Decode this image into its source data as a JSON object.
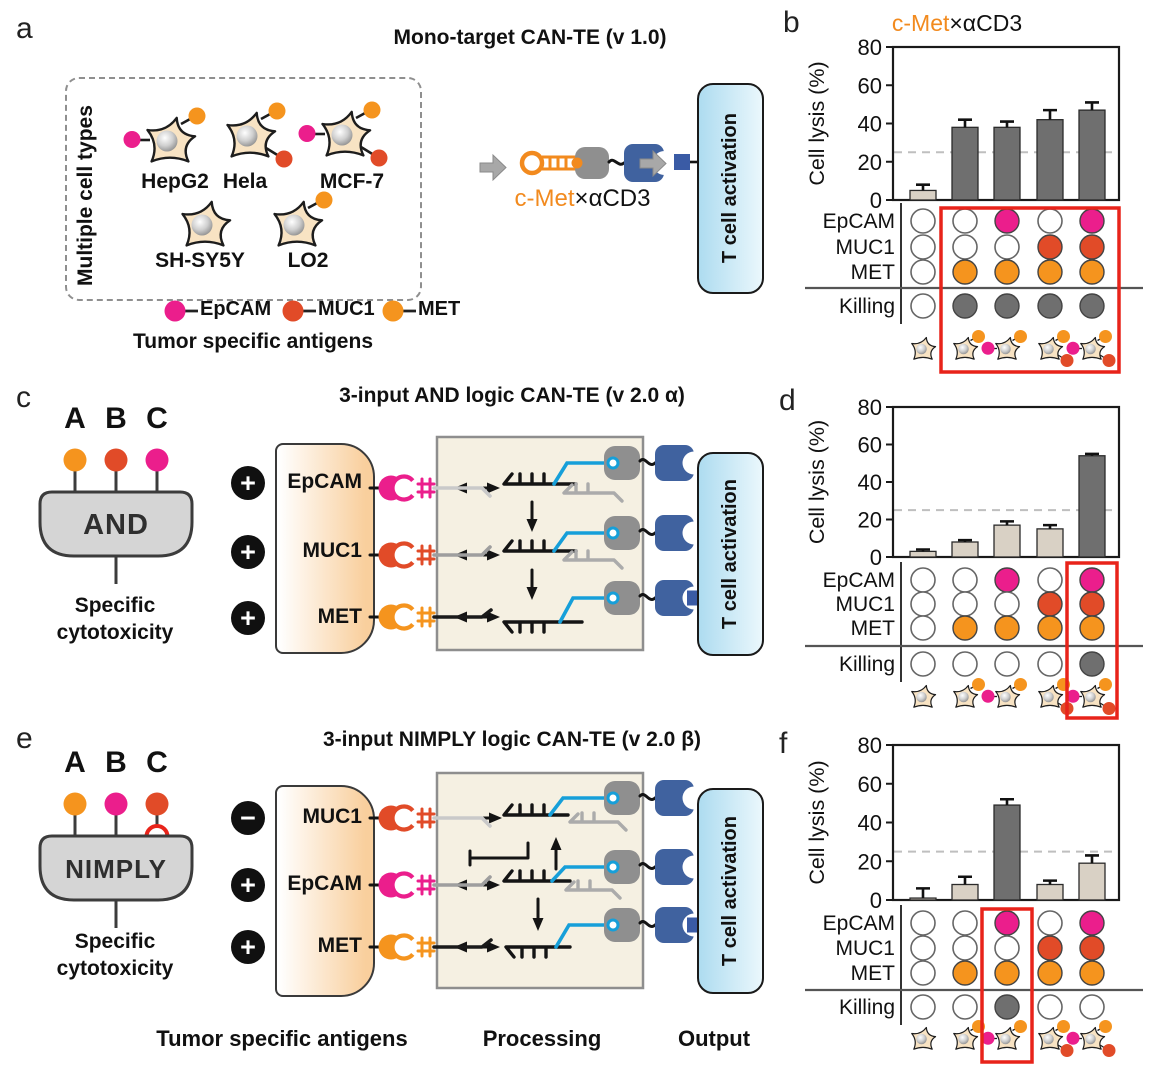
{
  "palette": {
    "epcam_pink": "#EB1E8C",
    "muc1_red": "#E14B28",
    "met_orange": "#F5941E",
    "construct_orange": "#F28A1E",
    "bar_dark": "#6F6F6F",
    "bar_light": "#D9D1C5",
    "killing_gray": "#6F6F6F",
    "highlight_red": "#E8231A",
    "antibody_blue": "#40629F",
    "output_blue": "#3A5BA5",
    "strand_blue": "#169FD9",
    "blob_gray": "#8F8F8F",
    "tcell_blue_light": "#AEDCF0",
    "tcell_blue_lighter": "#EAF7FC",
    "processing_bg": "#F5F0E2",
    "gate_gray": "#D5D5D5"
  },
  "panel_a": {
    "label": "a",
    "title": "Mono-target CAN-TE (v 1.0)",
    "group_label": "Multiple cell types",
    "cells": [
      {
        "name": "HepG2",
        "antigens": {
          "epcam": true,
          "muc1": false,
          "met": true
        }
      },
      {
        "name": "Hela",
        "antigens": {
          "epcam": false,
          "muc1": true,
          "met": true
        }
      },
      {
        "name": "MCF-7",
        "antigens": {
          "epcam": true,
          "muc1": true,
          "met": true
        }
      },
      {
        "name": "SH-SY5Y",
        "antigens": {
          "epcam": false,
          "muc1": false,
          "met": false
        }
      },
      {
        "name": "LO2",
        "antigens": {
          "epcam": false,
          "muc1": false,
          "met": true
        }
      }
    ],
    "legend": [
      {
        "label": "EpCAM",
        "color": "epcam_pink"
      },
      {
        "label": "MUC1",
        "color": "muc1_red"
      },
      {
        "label": "MET",
        "color": "met_orange"
      }
    ],
    "legend_caption": "Tumor specific antigens",
    "construct": {
      "orange_part": "c-Met",
      "black_part": "×αCD3"
    },
    "tcell_label": "T cell activation"
  },
  "panel_c": {
    "label": "c",
    "title": "3-input AND logic CAN-TE (v 2.0 α)",
    "inputs": [
      "A",
      "B",
      "C"
    ],
    "input_dot_colors": [
      "met_orange",
      "muc1_red",
      "epcam_pink"
    ],
    "gate": "AND",
    "gate_caption_line1": "Specific",
    "gate_caption_line2": "cytotoxicity",
    "receptors": [
      {
        "sign": "+",
        "label": "EpCAM",
        "color": "epcam_pink"
      },
      {
        "sign": "+",
        "label": "MUC1",
        "color": "muc1_red"
      },
      {
        "sign": "+",
        "label": "MET",
        "color": "met_orange"
      }
    ],
    "tcell_label": "T cell activation"
  },
  "panel_e": {
    "label": "e",
    "title": "3-input NIMPLY logic CAN-TE (v 2.0 β)",
    "inputs": [
      "A",
      "B",
      "C"
    ],
    "input_dot_colors": [
      "met_orange",
      "epcam_pink",
      "muc1_red"
    ],
    "not_input_index": 2,
    "gate": "NIMPLY",
    "gate_caption_line1": "Specific",
    "gate_caption_line2": "cytotoxicity",
    "receptors": [
      {
        "sign": "−",
        "label": "MUC1",
        "color": "muc1_red"
      },
      {
        "sign": "+",
        "label": "EpCAM",
        "color": "epcam_pink"
      },
      {
        "sign": "+",
        "label": "MET",
        "color": "met_orange"
      }
    ],
    "tcell_label": "T cell activation"
  },
  "bottom_labels": {
    "antigens": "Tumor specific antigens",
    "processing": "Processing",
    "output": "Output"
  },
  "cells_row": [
    {
      "epcam": 0,
      "muc1": 0,
      "met": 0
    },
    {
      "epcam": 0,
      "muc1": 0,
      "met": 1
    },
    {
      "epcam": 1,
      "muc1": 0,
      "met": 1
    },
    {
      "epcam": 0,
      "muc1": 1,
      "met": 1
    },
    {
      "epcam": 1,
      "muc1": 1,
      "met": 1
    }
  ],
  "chart_data": [
    {
      "panel": "b",
      "label": "b",
      "type": "bar",
      "title_orange": "c-Met",
      "title_black": "×αCD3",
      "ylabel": "Cell lysis (%)",
      "ylim": [
        0,
        80
      ],
      "yticks": [
        0,
        20,
        40,
        60,
        80
      ],
      "dashed_threshold": 25,
      "categories": [
        "no antigens",
        "MET",
        "EpCAM+MET",
        "MUC1+MET",
        "EpCAM+MUC1+MET"
      ],
      "values": [
        5,
        38,
        38,
        42,
        47
      ],
      "errors": [
        3,
        4,
        3,
        5,
        4
      ],
      "bar_styles": [
        "light",
        "dark",
        "dark",
        "dark",
        "dark"
      ],
      "antigen_rows": [
        {
          "label": "EpCAM",
          "color": "epcam_pink",
          "dots": [
            0,
            0,
            1,
            0,
            1
          ]
        },
        {
          "label": "MUC1",
          "color": "muc1_red",
          "dots": [
            0,
            0,
            0,
            1,
            1
          ]
        },
        {
          "label": "MET",
          "color": "met_orange",
          "dots": [
            0,
            1,
            1,
            1,
            1
          ]
        }
      ],
      "killing_row": {
        "label": "Killing",
        "dots": [
          0,
          1,
          1,
          1,
          1
        ]
      },
      "highlight_cols": [
        1,
        4
      ]
    },
    {
      "panel": "d",
      "label": "d",
      "type": "bar",
      "ylabel": "Cell lysis (%)",
      "ylim": [
        0,
        80
      ],
      "yticks": [
        0,
        20,
        40,
        60,
        80
      ],
      "dashed_threshold": 25,
      "categories": [
        "no antigens",
        "MET",
        "EpCAM+MET",
        "MUC1+MET",
        "EpCAM+MUC1+MET"
      ],
      "values": [
        3,
        8,
        17,
        15,
        54
      ],
      "errors": [
        1,
        1,
        2,
        2,
        1
      ],
      "bar_styles": [
        "light",
        "light",
        "light",
        "light",
        "dark"
      ],
      "antigen_rows": [
        {
          "label": "EpCAM",
          "color": "epcam_pink",
          "dots": [
            0,
            0,
            1,
            0,
            1
          ]
        },
        {
          "label": "MUC1",
          "color": "muc1_red",
          "dots": [
            0,
            0,
            0,
            1,
            1
          ]
        },
        {
          "label": "MET",
          "color": "met_orange",
          "dots": [
            0,
            1,
            1,
            1,
            1
          ]
        }
      ],
      "killing_row": {
        "label": "Killing",
        "dots": [
          0,
          0,
          0,
          0,
          1
        ]
      },
      "highlight_cols": [
        4,
        4
      ]
    },
    {
      "panel": "f",
      "label": "f",
      "type": "bar",
      "ylabel": "Cell lysis (%)",
      "ylim": [
        0,
        80
      ],
      "yticks": [
        0,
        20,
        40,
        60,
        80
      ],
      "dashed_threshold": 25,
      "categories": [
        "no antigens",
        "MET",
        "EpCAM+MET",
        "MUC1+MET",
        "EpCAM+MUC1+MET"
      ],
      "values": [
        1,
        8,
        49,
        8,
        19
      ],
      "errors": [
        5,
        4,
        3,
        2,
        4
      ],
      "bar_styles": [
        "light",
        "light",
        "dark",
        "light",
        "light"
      ],
      "antigen_rows": [
        {
          "label": "EpCAM",
          "color": "epcam_pink",
          "dots": [
            0,
            0,
            1,
            0,
            1
          ]
        },
        {
          "label": "MUC1",
          "color": "muc1_red",
          "dots": [
            0,
            0,
            0,
            1,
            1
          ]
        },
        {
          "label": "MET",
          "color": "met_orange",
          "dots": [
            0,
            1,
            1,
            1,
            1
          ]
        }
      ],
      "killing_row": {
        "label": "Killing",
        "dots": [
          0,
          0,
          1,
          0,
          0
        ]
      },
      "highlight_cols": [
        2,
        2
      ]
    }
  ]
}
